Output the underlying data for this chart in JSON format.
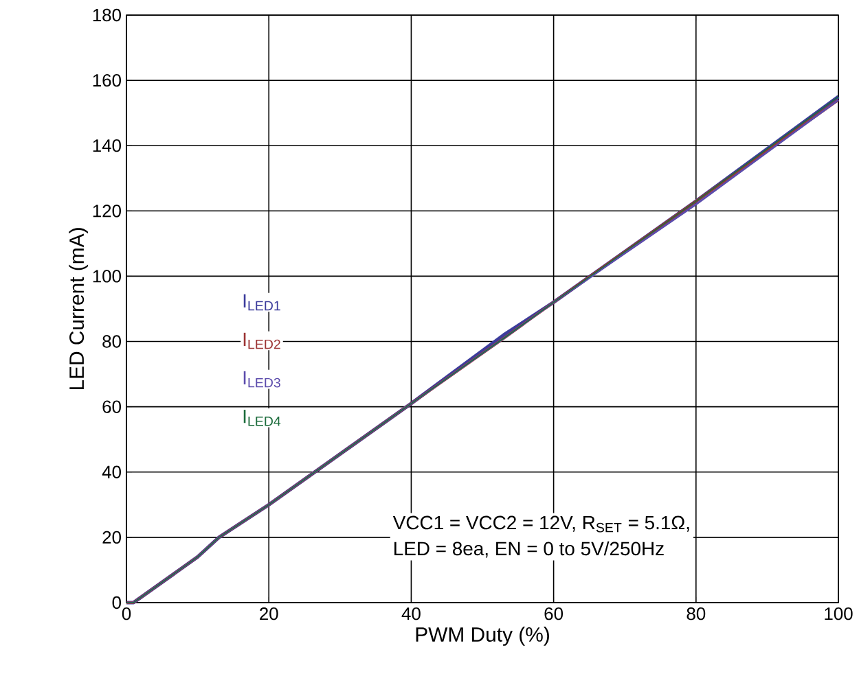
{
  "chart_data": {
    "type": "line",
    "xlabel": "PWM Duty (%)",
    "ylabel": "LED Current (mA)",
    "x": [
      0,
      1,
      10,
      13,
      20,
      40,
      53,
      60,
      80,
      100
    ],
    "series": [
      {
        "name": "I$_{LED1}$",
        "color": "#3c3c9c",
        "values": [
          0,
          0,
          14,
          20,
          30,
          61,
          82,
          92,
          123,
          155
        ]
      },
      {
        "name": "I$_{LED2}$",
        "color": "#9c3434",
        "values": [
          0,
          0,
          14,
          20,
          30,
          61,
          81,
          92,
          123,
          154
        ]
      },
      {
        "name": "I$_{LED3}$",
        "color": "#5c4cac",
        "values": [
          0,
          0,
          14,
          20,
          30,
          61,
          81,
          92,
          122,
          154
        ]
      },
      {
        "name": "I$_{LED4}$",
        "color": "#1c6c3c",
        "values": [
          0,
          0,
          14,
          20,
          30,
          61,
          81,
          92,
          123,
          155
        ]
      }
    ],
    "xlim": [
      0,
      100
    ],
    "ylim": [
      0,
      180
    ],
    "xticks": [
      0,
      20,
      40,
      60,
      80,
      100
    ],
    "yticks": [
      0,
      20,
      40,
      60,
      80,
      100,
      120,
      140,
      160,
      180
    ],
    "grid": true,
    "marker": "none",
    "line_style": "solid",
    "annotations": [
      {
        "text": "VCC1 = VCC2 = 12V, R$_{SET}$ = 5.1Ω,"
      },
      {
        "text": "LED = 8ea, EN = 0 to 5V/250Hz"
      }
    ]
  }
}
